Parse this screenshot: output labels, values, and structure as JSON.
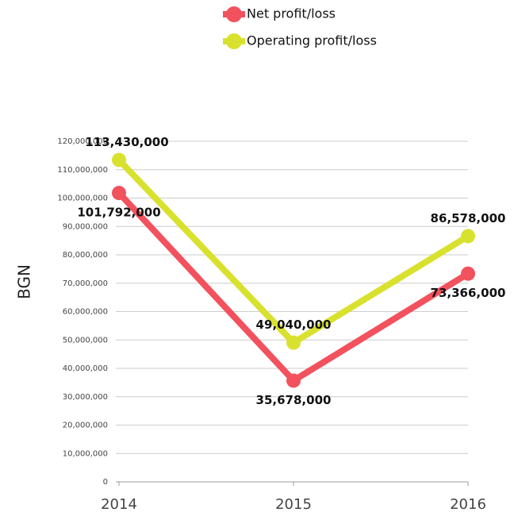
{
  "chart_data": {
    "type": "line",
    "categories": [
      "2014",
      "2015",
      "2016"
    ],
    "ylabel": "BGN",
    "series": [
      {
        "name": "Net profit/loss",
        "color": "#f2515e",
        "values": [
          101792000,
          35678000,
          73366000
        ],
        "value_labels": [
          "101,792,000",
          "35,678,000",
          "73,366,000"
        ]
      },
      {
        "name": "Operating profit/loss",
        "color": "#d9e12f",
        "values": [
          113430000,
          49040000,
          86578000
        ],
        "value_labels": [
          "113,430,000",
          "49,040,000",
          "86,578,000"
        ]
      }
    ],
    "ylim": [
      0,
      120000000
    ],
    "yticks": [
      0,
      {
        "value": 10000000,
        "label": "10,000,000"
      },
      {
        "value": 20000000,
        "label": "20,000,000"
      },
      {
        "value": 30000000,
        "label": "30,000,000"
      },
      {
        "value": 40000000,
        "label": "40,000,000"
      },
      {
        "value": 50000000,
        "label": "50,000,000"
      },
      {
        "value": 60000000,
        "label": "60,000,000"
      },
      {
        "value": 70000000,
        "label": "70,000,000"
      },
      {
        "value": 80000000,
        "label": "80,000,000"
      },
      {
        "value": 90000000,
        "label": "90,000,000"
      },
      {
        "value": 100000000,
        "label": "100,000,000"
      },
      {
        "value": 110000000,
        "label": "110,000,000"
      },
      {
        "value": 120000000,
        "label": "120,000,000"
      }
    ],
    "grid": true
  }
}
